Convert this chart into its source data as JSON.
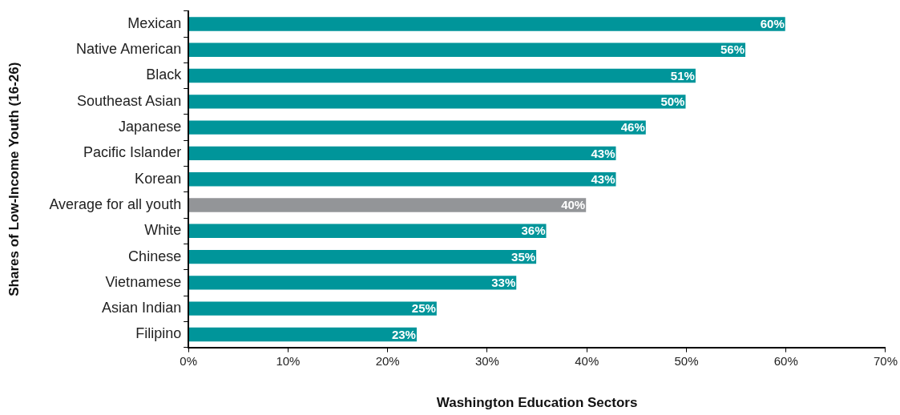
{
  "chart_data": {
    "type": "bar",
    "orientation": "horizontal",
    "xlabel": "Washington Education Sectors",
    "ylabel": "Shares of Low-Income Youth (16-26)",
    "categories": [
      "Mexican",
      "Native American",
      "Black",
      "Southeast Asian",
      "Japanese",
      "Pacific Islander",
      "Korean",
      "Average for all youth",
      "White",
      "Chinese",
      "Vietnamese",
      "Asian Indian",
      "Filipino"
    ],
    "values": [
      60,
      56,
      51,
      50,
      46,
      43,
      43,
      40,
      36,
      35,
      33,
      25,
      23
    ],
    "colors": [
      "#00959a",
      "#00959a",
      "#00959a",
      "#00959a",
      "#00959a",
      "#00959a",
      "#00959a",
      "#939598",
      "#00959a",
      "#00959a",
      "#00959a",
      "#00959a",
      "#00959a"
    ],
    "value_labels": [
      "60%",
      "56%",
      "51%",
      "50%",
      "46%",
      "43%",
      "43%",
      "40%",
      "36%",
      "35%",
      "33%",
      "25%",
      "23%"
    ],
    "xlim": [
      0,
      70
    ],
    "xticks": [
      {
        "value": 0,
        "label": "0%"
      },
      {
        "value": 10,
        "label": "10%"
      },
      {
        "value": 20,
        "label": "20%"
      },
      {
        "value": 30,
        "label": "30%"
      },
      {
        "value": 40,
        "label": "40%"
      },
      {
        "value": 50,
        "label": "50%"
      },
      {
        "value": 60,
        "label": "60%"
      },
      {
        "value": 70,
        "label": "70%"
      }
    ],
    "grid": false,
    "legend": false
  }
}
